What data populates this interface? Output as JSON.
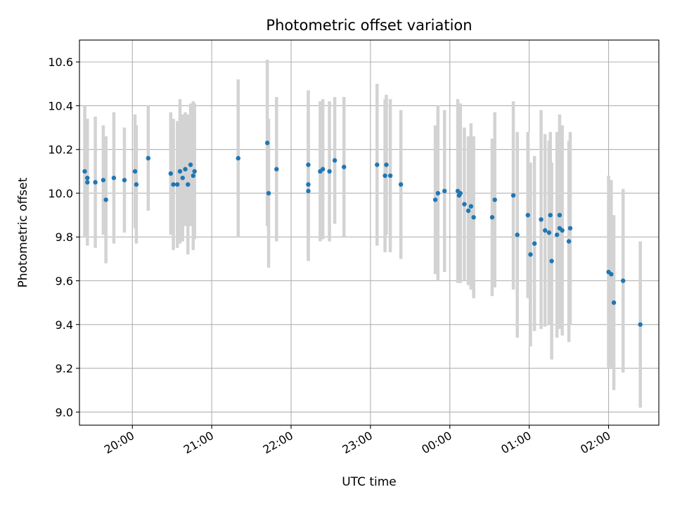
{
  "chart_data": {
    "type": "scatter",
    "title": "Photometric offset variation",
    "xlabel": "UTC time",
    "ylabel": "Photometric offset",
    "x_unit": "UTC time of day",
    "x_ticks": [
      "20:00",
      "21:00",
      "22:00",
      "23:00",
      "00:00",
      "01:00",
      "02:00"
    ],
    "y_ticks": [
      "9.0",
      "9.2",
      "9.4",
      "9.6",
      "9.8",
      "10.0",
      "10.2",
      "10.4",
      "10.6"
    ],
    "xlim": [
      "19:20",
      "02:38"
    ],
    "ylim": [
      8.94,
      10.7
    ],
    "grid": true,
    "colors": {
      "point": "#1f77b4",
      "errorbar": "#d3d3d3",
      "grid": "#b0b0b0",
      "axis": "#000000"
    },
    "series": [
      {
        "x": [
          "19:24",
          "19:26",
          "19:26",
          "19:32",
          "19:38",
          "19:40",
          "19:46",
          "19:54",
          "20:02",
          "20:03",
          "20:12",
          "20:29",
          "20:31",
          "20:34",
          "20:36",
          "20:38",
          "20:40",
          "20:42",
          "20:44",
          "20:46",
          "20:47",
          "21:20",
          "21:42",
          "21:43",
          "21:49",
          "22:13",
          "22:13",
          "22:13",
          "22:22",
          "22:24",
          "22:29",
          "22:33",
          "22:40",
          "23:05",
          "23:11",
          "23:12",
          "23:15",
          "23:23",
          "23:49",
          "23:51",
          "23:56",
          "24:06",
          "24:07",
          "24:08",
          "24:11",
          "24:14",
          "24:16",
          "24:18",
          "24:32",
          "24:34",
          "24:48",
          "24:51",
          "24:59",
          "25:01",
          "25:04",
          "25:09",
          "25:12",
          "25:15",
          "25:16",
          "25:17",
          "25:21",
          "25:23",
          "25:23",
          "25:25",
          "25:30",
          "25:31",
          "26:00",
          "26:02",
          "26:04",
          "26:11",
          "26:24"
        ],
        "y": [
          10.1,
          10.07,
          10.05,
          10.05,
          10.06,
          9.97,
          10.07,
          10.06,
          10.1,
          10.04,
          10.16,
          10.09,
          10.04,
          10.04,
          10.1,
          10.07,
          10.11,
          10.04,
          10.13,
          10.08,
          10.1,
          10.16,
          10.23,
          10.0,
          10.11,
          10.13,
          10.04,
          10.01,
          10.1,
          10.11,
          10.1,
          10.15,
          10.12,
          10.13,
          10.08,
          10.13,
          10.08,
          10.04,
          9.97,
          10.0,
          10.01,
          10.01,
          9.99,
          10.0,
          9.95,
          9.92,
          9.94,
          9.89,
          9.89,
          9.97,
          9.99,
          9.81,
          9.9,
          9.72,
          9.77,
          9.88,
          9.83,
          9.82,
          9.9,
          9.69,
          9.81,
          9.84,
          9.9,
          9.83,
          9.78,
          9.84,
          9.64,
          9.63,
          9.5,
          9.6,
          9.4
        ],
        "yerr": [
          0.3,
          0.27,
          0.29,
          0.3,
          0.25,
          0.29,
          0.3,
          0.24,
          0.26,
          0.27,
          0.24,
          0.28,
          0.3,
          0.29,
          0.33,
          0.29,
          0.26,
          0.32,
          0.28,
          0.34,
          0.31,
          0.36,
          0.38,
          0.34,
          0.33,
          0.34,
          0.33,
          0.32,
          0.32,
          0.32,
          0.32,
          0.29,
          0.32,
          0.37,
          0.35,
          0.32,
          0.35,
          0.34,
          0.34,
          0.4,
          0.37,
          0.42,
          0.35,
          0.41,
          0.35,
          0.34,
          0.38,
          0.37,
          0.36,
          0.4,
          0.43,
          0.47,
          0.38,
          0.42,
          0.4,
          0.5,
          0.44,
          0.42,
          0.38,
          0.45,
          0.47,
          0.46,
          0.46,
          0.48,
          0.46,
          0.44,
          0.44,
          0.43,
          0.4,
          0.42,
          0.38
        ]
      }
    ]
  }
}
